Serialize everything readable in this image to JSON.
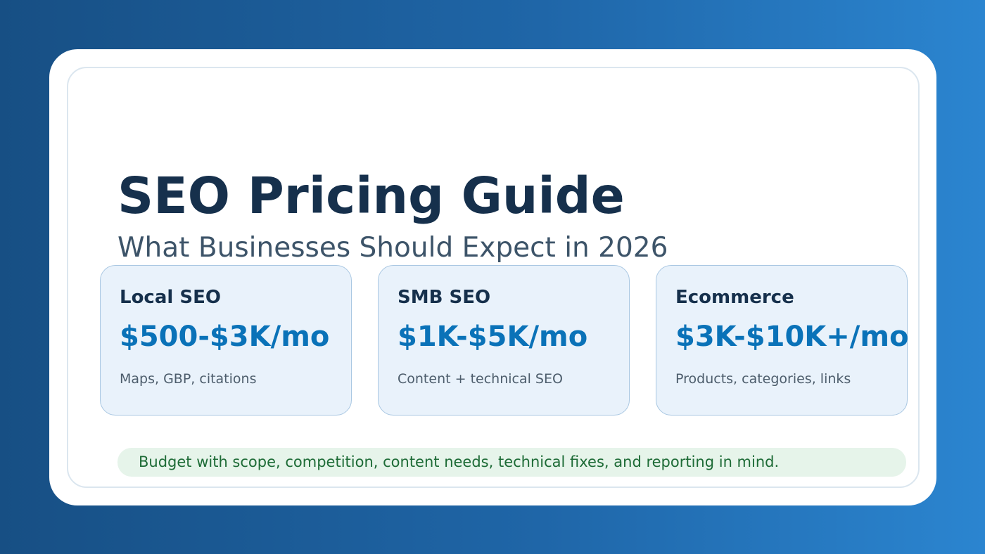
{
  "header": {
    "title": "SEO Pricing Guide",
    "subtitle": "What Businesses Should Expect in 2026"
  },
  "tiers": [
    {
      "name": "Local SEO",
      "price": "$500-$3K/mo",
      "description": "Maps, GBP, citations"
    },
    {
      "name": "SMB SEO",
      "price": "$1K-$5K/mo",
      "description": "Content + technical SEO"
    },
    {
      "name": "Ecommerce",
      "price": "$3K-$10K+/mo",
      "description": "Products, categories, links"
    }
  ],
  "footer_note": "Budget with scope, competition, content needs, technical fixes, and reporting in mind.",
  "colors": {
    "background_start": "#174f84",
    "background_end": "#2b85d0",
    "title": "#16304c",
    "price": "#0a72b8",
    "tier_background": "#e9f2fb",
    "note_background": "#e6f4ea",
    "note_text": "#1d6b36"
  }
}
